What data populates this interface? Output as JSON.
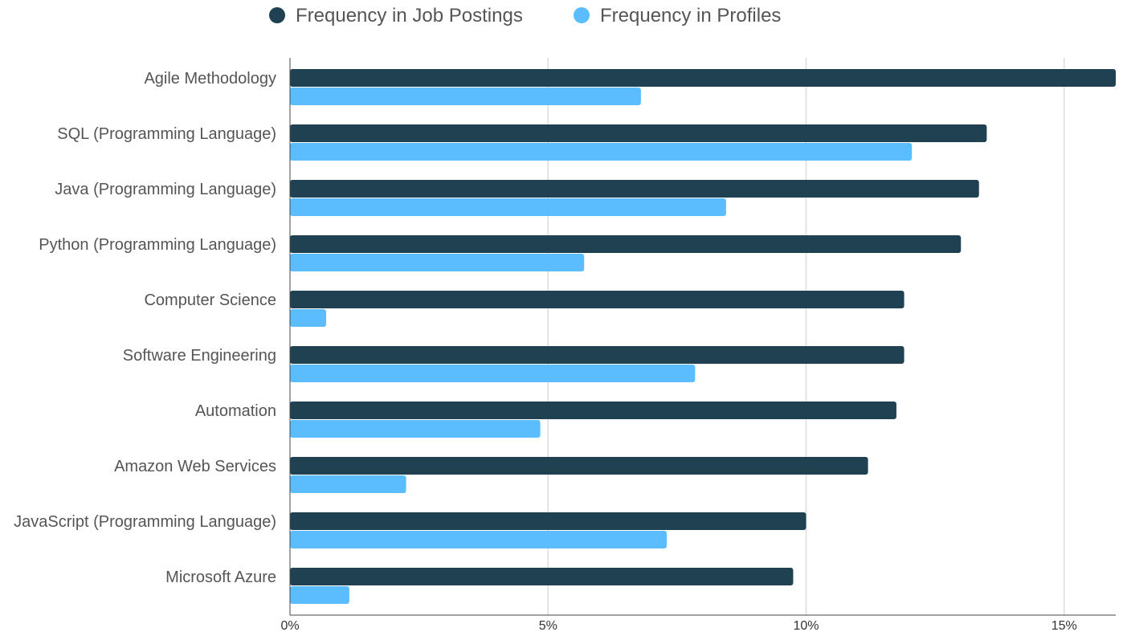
{
  "chart_data": {
    "type": "bar",
    "orientation": "horizontal",
    "categories": [
      "Agile Methodology",
      "SQL (Programming Language)",
      "Java (Programming Language)",
      "Python (Programming Language)",
      "Computer Science",
      "Software Engineering",
      "Automation",
      "Amazon Web Services",
      "JavaScript (Programming Language)",
      "Microsoft Azure"
    ],
    "series": [
      {
        "name": "Frequency in Job Postings",
        "color": "#1f4152",
        "values": [
          16.0,
          13.5,
          13.35,
          13.0,
          11.9,
          11.9,
          11.75,
          11.2,
          10.0,
          9.75
        ]
      },
      {
        "name": "Frequency in Profiles",
        "color": "#5bbdfd",
        "values": [
          6.8,
          12.05,
          8.45,
          5.7,
          0.7,
          7.85,
          4.85,
          2.25,
          7.3,
          1.15
        ]
      }
    ],
    "x_ticks": [
      0,
      5,
      10,
      15
    ],
    "x_tick_labels": [
      "0%",
      "5%",
      "10%",
      "15%"
    ],
    "xlim": [
      0,
      16
    ],
    "title": "",
    "xlabel": "",
    "ylabel": "",
    "grid": "vertical",
    "legend_position": "top-center"
  }
}
